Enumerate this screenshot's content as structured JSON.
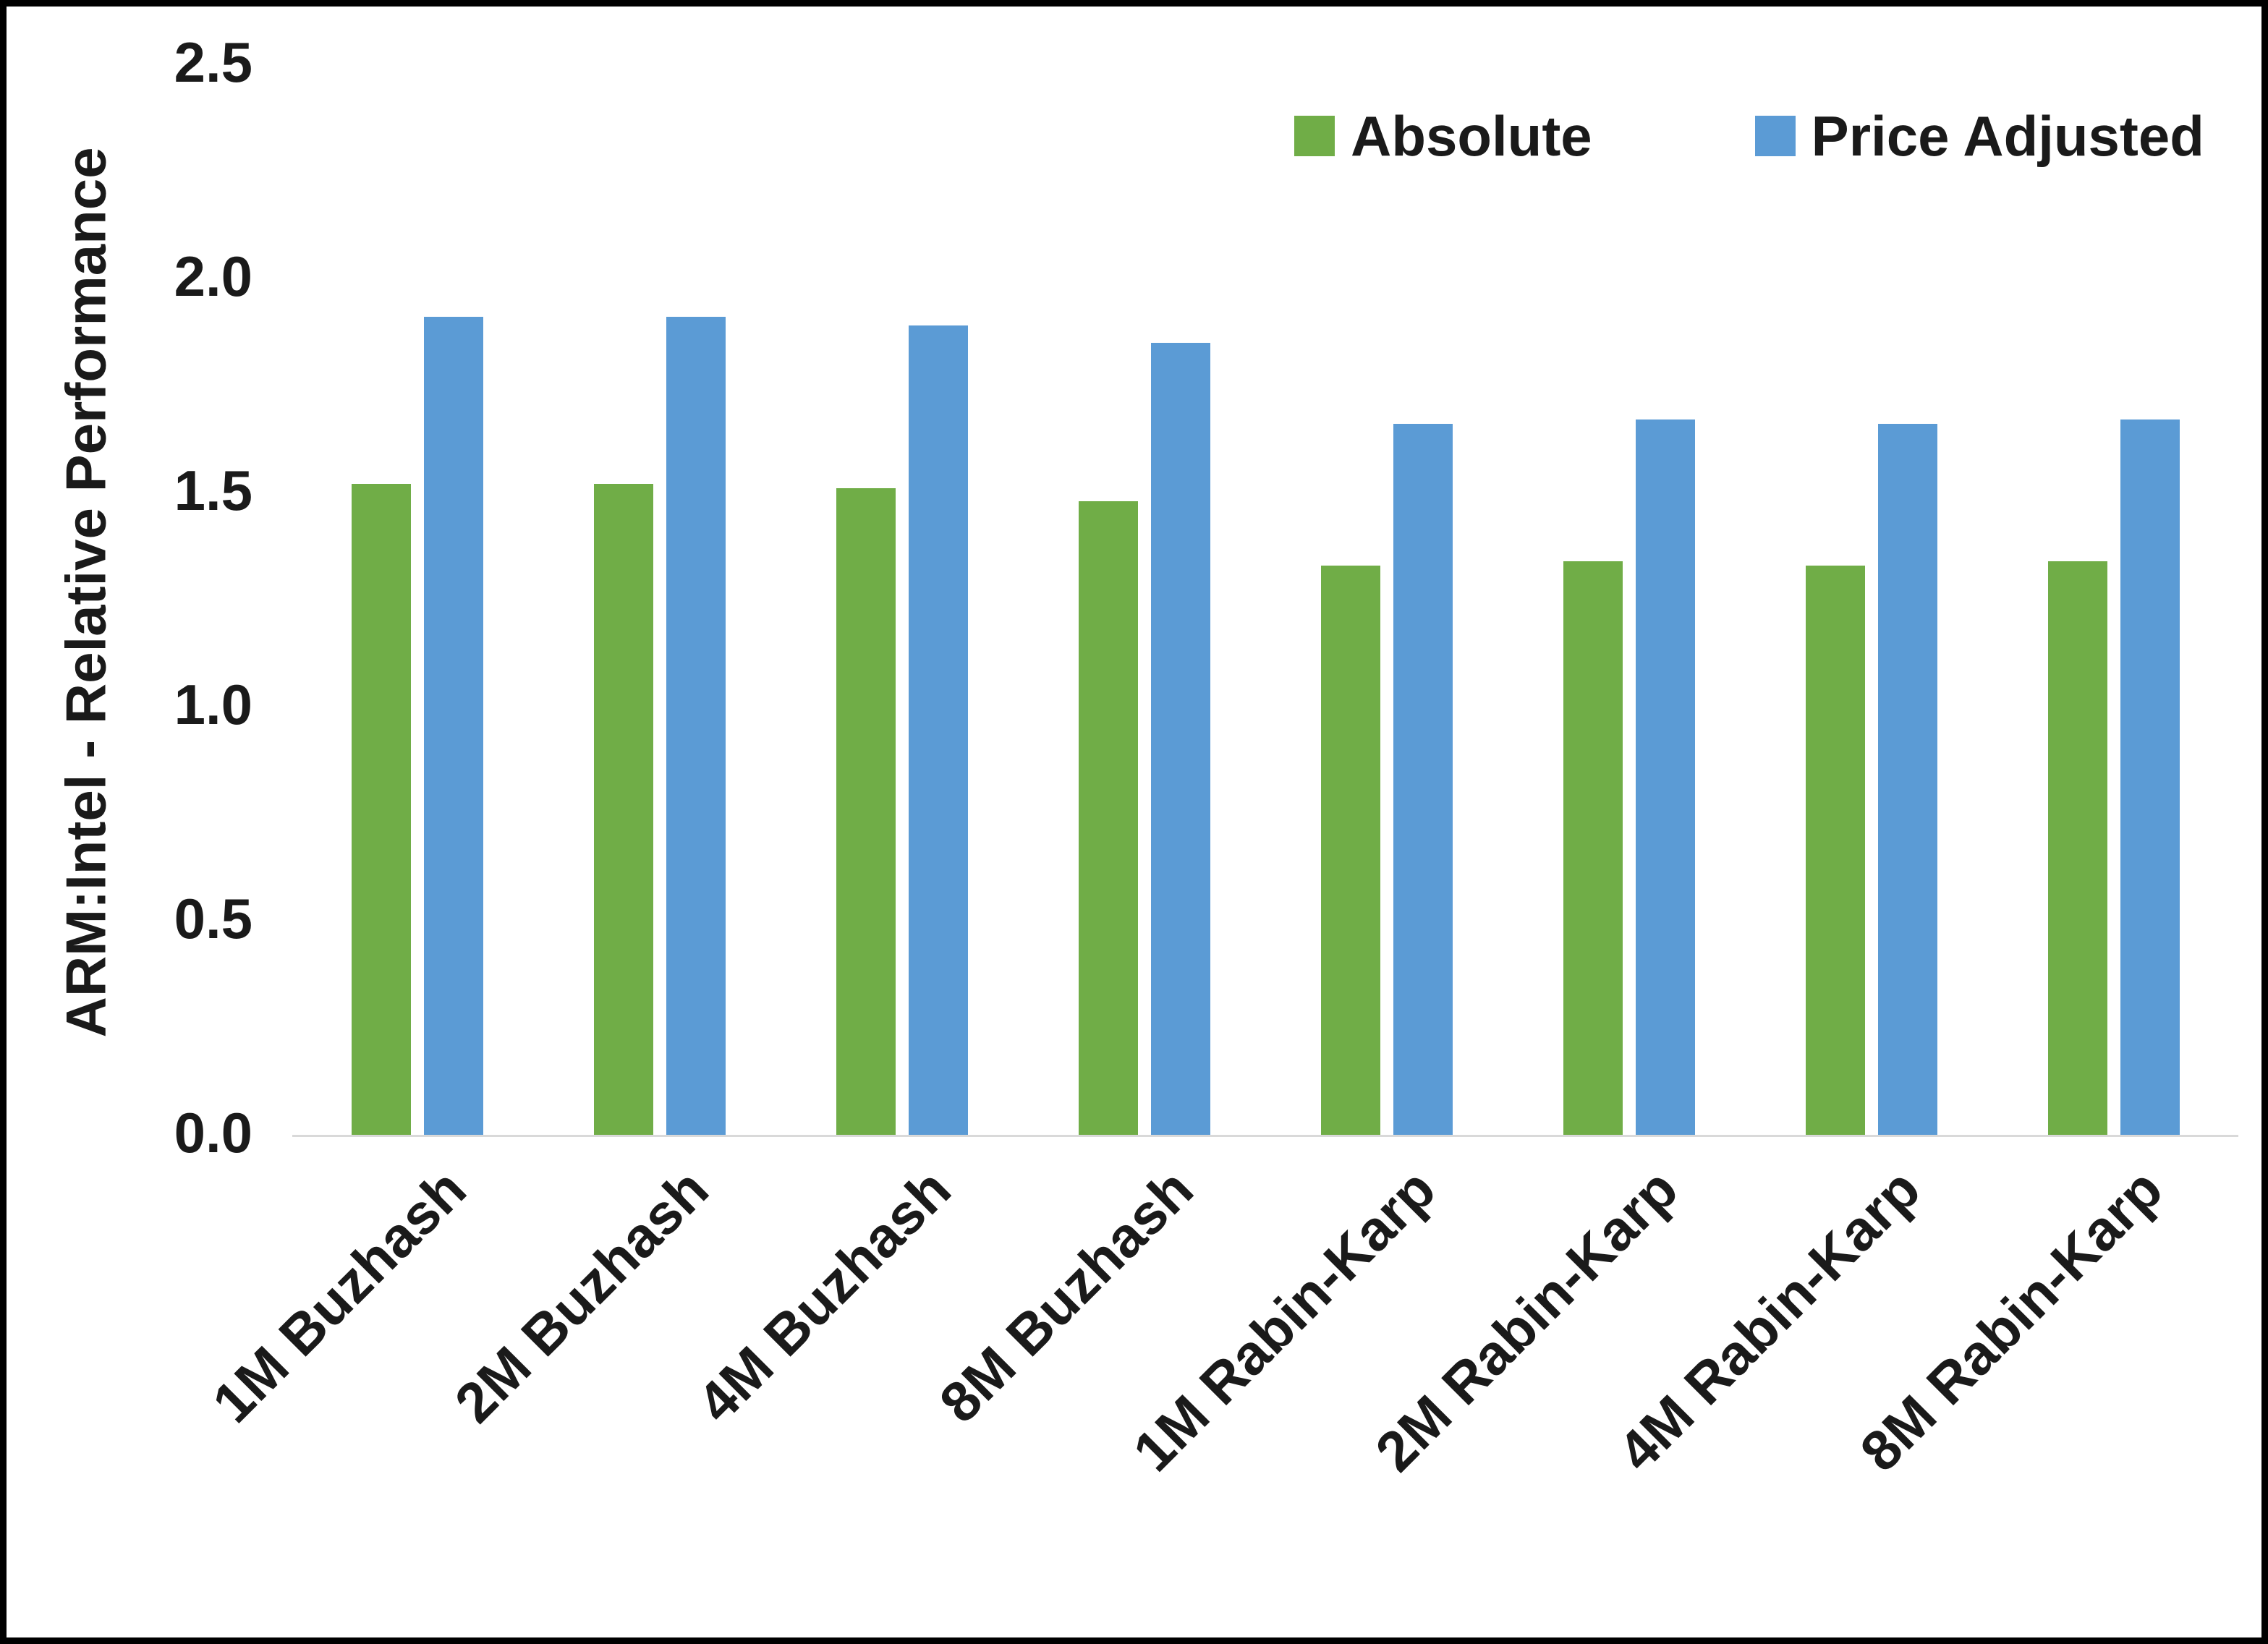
{
  "chart_data": {
    "type": "bar",
    "title": "",
    "categories": [
      "1M Buzhash",
      "2M Buzhash",
      "4M Buzhash",
      "8M Buzhash",
      "1M Rabin-Karp",
      "2M Rabin-Karp",
      "4M Rabin-Karp",
      "8M Rabin-Karp"
    ],
    "series": [
      {
        "name": "Absolute",
        "color": "#70AD47",
        "values": [
          1.52,
          1.52,
          1.51,
          1.48,
          1.33,
          1.34,
          1.33,
          1.34
        ]
      },
      {
        "name": "Price Adjusted",
        "color": "#5B9BD5",
        "values": [
          1.91,
          1.91,
          1.89,
          1.85,
          1.66,
          1.67,
          1.66,
          1.67
        ]
      }
    ],
    "xlabel": "",
    "ylabel": "ARM:Intel - Relative Performance",
    "ylim": [
      0,
      2.5
    ],
    "yticks": [
      0.0,
      0.5,
      1.0,
      1.5,
      2.0,
      2.5
    ],
    "ytick_labels": [
      "0.0",
      "0.5",
      "1.0",
      "1.5",
      "2.0",
      "2.5"
    ],
    "grid": false,
    "legend_position": "top-right",
    "bar_colors": {
      "absolute": "#70AD47",
      "price_adjusted": "#5B9BD5"
    }
  }
}
